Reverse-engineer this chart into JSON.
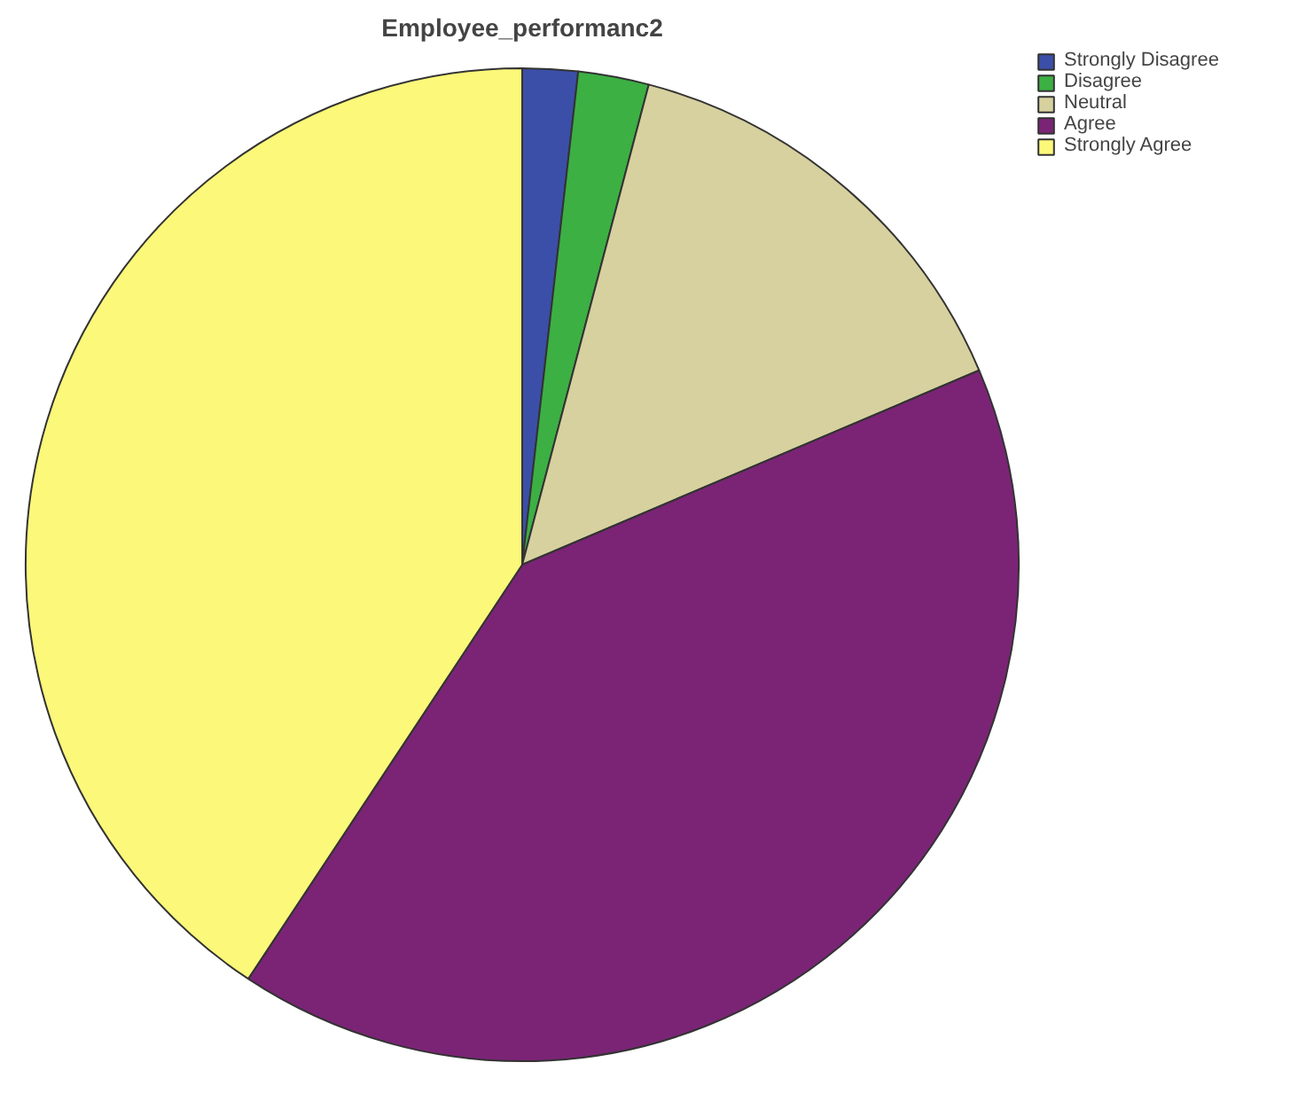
{
  "chart_data": {
    "type": "pie",
    "title": "Employee_performanc2",
    "categories": [
      "Strongly Disagree",
      "Disagree",
      "Neutral",
      "Agree",
      "Strongly Agree"
    ],
    "values": [
      1.8,
      2.3,
      14.5,
      40.7,
      40.7
    ],
    "colors": [
      "#3b4fa8",
      "#3cb043",
      "#d6d19e",
      "#7b2476",
      "#fbf87a"
    ],
    "legend": "top right"
  }
}
